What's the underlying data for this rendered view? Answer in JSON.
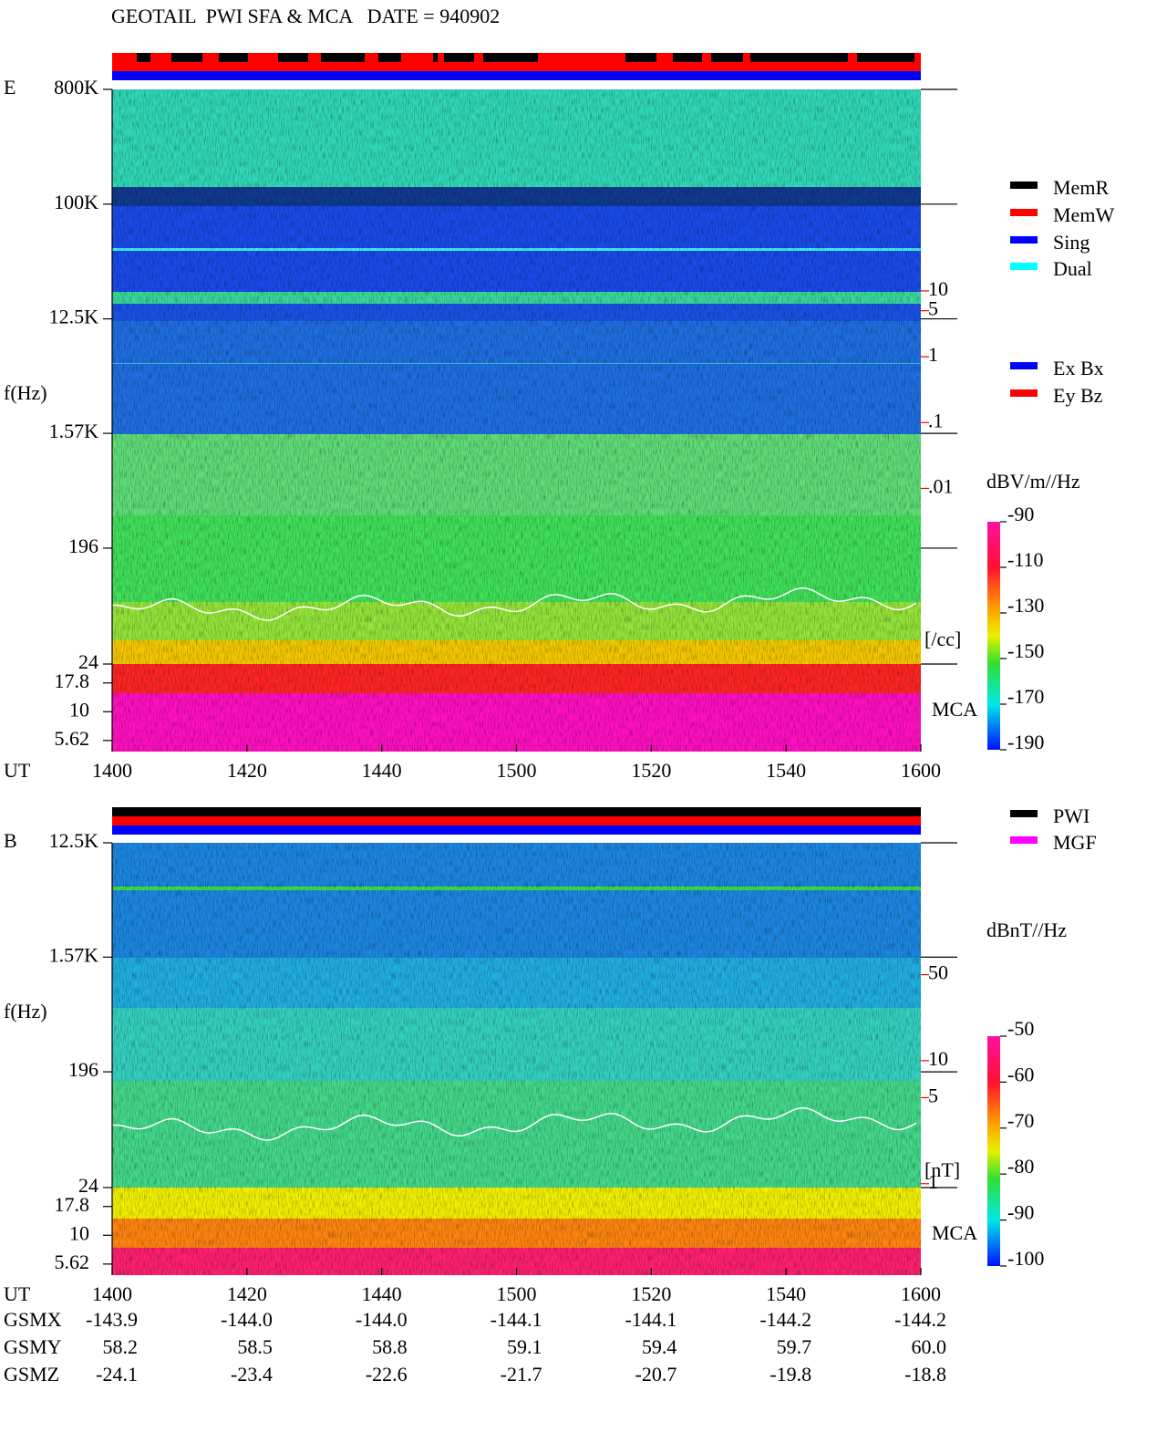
{
  "title": "GEOTAIL  PWI SFA & MCA   DATE = 940902",
  "chart_data": [
    {
      "type": "spectrogram",
      "panel_label": "E",
      "ylabel": "f(Hz)",
      "xlabel": "UT",
      "categories": [
        "1400",
        "1420",
        "1440",
        "1500",
        "1520",
        "1540",
        "1600"
      ],
      "yscale": "log",
      "ylim": [
        24,
        800000
      ],
      "yticks": [
        {
          "value": 800000,
          "label": "800K"
        },
        {
          "value": 100000,
          "label": "100K"
        },
        {
          "value": 12500,
          "label": "12.5K"
        },
        {
          "value": 1570,
          "label": "1.57K"
        },
        196,
        24
      ],
      "mca_label": "MCA",
      "mca_ylim": [
        4.5,
        26
      ],
      "mca_yticks": [
        17.8,
        10,
        5.62
      ],
      "y2lim": [
        2.15e-05,
        11500
      ],
      "y2label": "[/cc]",
      "y2color": "#ff0000",
      "y2ticks": [
        10,
        5,
        1,
        {
          "value": 0.1,
          "label": ".1"
        },
        {
          "value": 0.01,
          "label": ".01"
        }
      ],
      "colorbar": {
        "label": "dBV/m//Hz",
        "lim": [
          -190,
          -90
        ],
        "ticks": [
          -90,
          -110,
          -130,
          -150,
          -170,
          -190
        ]
      },
      "legend": [
        {
          "name": "MemR",
          "color": "#000000"
        },
        {
          "name": "MemW",
          "color": "#ff0000"
        },
        {
          "name": "Sing",
          "color": "#0000ff"
        },
        {
          "name": "Dual",
          "color": "#00ffff"
        }
      ],
      "legend2": [
        {
          "name": "Ex Bx",
          "color": "#0000ff"
        },
        {
          "name": "Ey Bz",
          "color": "#ff0000"
        }
      ]
    },
    {
      "type": "spectrogram",
      "panel_label": "B",
      "ylabel": "f(Hz)",
      "xlabel": "UT",
      "categories": [
        "1400",
        "1420",
        "1440",
        "1500",
        "1520",
        "1540",
        "1600"
      ],
      "yscale": "log",
      "ylim": [
        24,
        12500
      ],
      "yticks": [
        {
          "value": 12500,
          "label": "12.5K"
        },
        {
          "value": 1570,
          "label": "1.57K"
        },
        196,
        24
      ],
      "mca_label": "MCA",
      "mca_ylim": [
        4.5,
        26
      ],
      "mca_yticks": [
        17.8,
        10,
        5.62
      ],
      "y2lim": [
        0.93,
        590
      ],
      "y2label": "[nT]",
      "y2color": "#ff0000",
      "y2ticks": [
        50,
        10,
        5,
        1
      ],
      "colorbar": {
        "label": "dBnT//Hz",
        "lim": [
          -100,
          -50
        ],
        "ticks": [
          -50,
          -60,
          -70,
          -80,
          -90,
          -100
        ]
      },
      "legend": [
        {
          "name": "PWI",
          "color": "#000000"
        },
        {
          "name": "MGF",
          "color": "#ff00ff"
        }
      ]
    }
  ],
  "orbit": {
    "rows": [
      {
        "name": "GSMX",
        "values": [
          "-143.9",
          "-144.0",
          "-144.0",
          "-144.1",
          "-144.1",
          "-144.2",
          "-144.2"
        ]
      },
      {
        "name": "GSMY",
        "values": [
          "58.2",
          "58.5",
          "58.8",
          "59.1",
          "59.4",
          "59.7",
          "60.0"
        ]
      },
      {
        "name": "GSMZ",
        "values": [
          "-24.1",
          "-23.4",
          "-22.6",
          "-21.7",
          "-20.7",
          "-19.8",
          "-18.8"
        ]
      }
    ]
  }
}
